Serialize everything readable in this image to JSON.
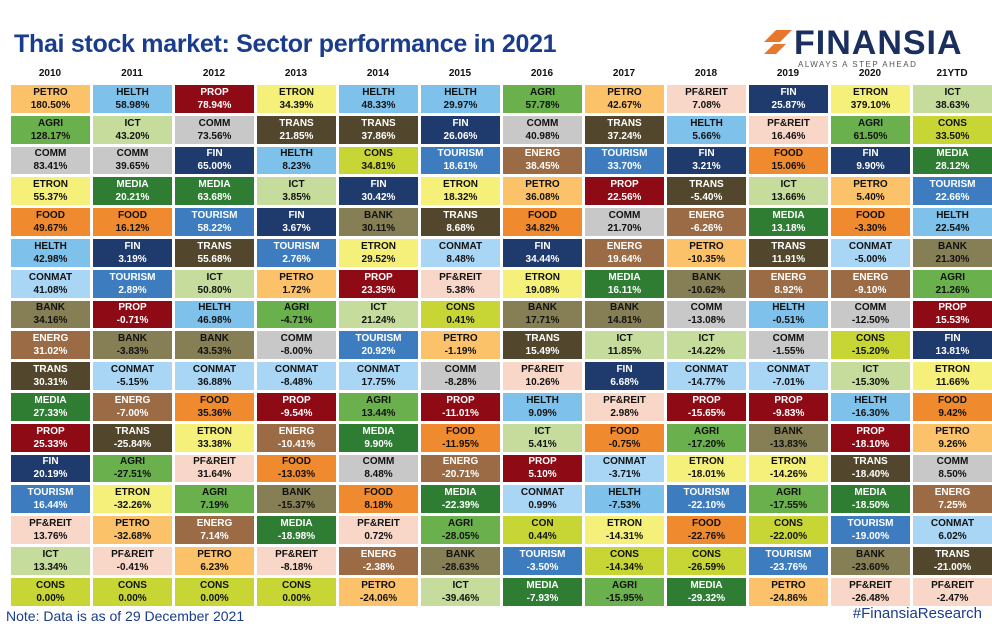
{
  "header": {
    "title": "Thai stock market: Sector performance in 2021",
    "brand_name": "FINANSIA",
    "brand_tagline": "ALWAYS A STEP AHEAD"
  },
  "footer": {
    "note": "Note: Data is as of 29 December 2021",
    "hashtag": "#FinansiaResearch"
  },
  "colors": {
    "brand_blue": "#1a3c8c",
    "brand_orange": "#e8772e",
    "sectors": {
      "PETRO": {
        "bg": "#fbc26a",
        "fg": "#111111"
      },
      "HELTH": {
        "bg": "#7ec2ec",
        "fg": "#111111"
      },
      "PROP": {
        "bg": "#8e0b16",
        "fg": "#ffffff"
      },
      "ETRON": {
        "bg": "#f4f07a",
        "fg": "#111111"
      },
      "AGRI": {
        "bg": "#6ab04c",
        "fg": "#111111"
      },
      "PF&REIT": {
        "bg": "#f8d7c8",
        "fg": "#111111"
      },
      "FIN": {
        "bg": "#1f3a6d",
        "fg": "#ffffff"
      },
      "ICT": {
        "bg": "#c5dc9c",
        "fg": "#111111"
      },
      "COMM": {
        "bg": "#c8c8c8",
        "fg": "#111111"
      },
      "TRANS": {
        "bg": "#52472c",
        "fg": "#ffffff"
      },
      "CONS": {
        "bg": "#c8d635",
        "fg": "#111111"
      },
      "ENERG": {
        "bg": "#9b6b45",
        "fg": "#ffffff"
      },
      "TOURISM": {
        "bg": "#3d7dbf",
        "fg": "#ffffff"
      },
      "FOOD": {
        "bg": "#ef8a2e",
        "fg": "#111111"
      },
      "MEDIA": {
        "bg": "#2e7d33",
        "fg": "#ffffff"
      },
      "BANK": {
        "bg": "#867f55",
        "fg": "#111111"
      },
      "CONMAT": {
        "bg": "#a9d6f5",
        "fg": "#111111"
      },
      "CON": {
        "bg": "#c8d635",
        "fg": "#111111"
      }
    }
  },
  "chart_data": {
    "type": "table",
    "title": "Thai stock market: Sector performance in 2021",
    "columns": [
      "2010",
      "2011",
      "2012",
      "2013",
      "2014",
      "2015",
      "2016",
      "2017",
      "2018",
      "2019",
      "2020",
      "21YTD"
    ],
    "rows": [
      [
        [
          "PETRO",
          "180.50%"
        ],
        [
          "HELTH",
          "58.98%"
        ],
        [
          "PROP",
          "78.94%"
        ],
        [
          "ETRON",
          "34.39%"
        ],
        [
          "HELTH",
          "48.33%"
        ],
        [
          "HELTH",
          "29.97%"
        ],
        [
          "AGRI",
          "57.78%"
        ],
        [
          "PETRO",
          "42.67%"
        ],
        [
          "PF&REIT",
          "7.08%"
        ],
        [
          "FIN",
          "25.87%"
        ],
        [
          "ETRON",
          "379.10%"
        ],
        [
          "ICT",
          "38.63%"
        ]
      ],
      [
        [
          "AGRI",
          "128.17%"
        ],
        [
          "ICT",
          "43.20%"
        ],
        [
          "COMM",
          "73.56%"
        ],
        [
          "TRANS",
          "21.85%"
        ],
        [
          "TRANS",
          "37.86%"
        ],
        [
          "FIN",
          "26.06%"
        ],
        [
          "COMM",
          "40.98%"
        ],
        [
          "TRANS",
          "37.24%"
        ],
        [
          "HELTH",
          "5.66%"
        ],
        [
          "PF&REIT",
          "16.46%"
        ],
        [
          "AGRI",
          "61.50%"
        ],
        [
          "CONS",
          "33.50%"
        ]
      ],
      [
        [
          "COMM",
          "83.41%"
        ],
        [
          "COMM",
          "39.65%"
        ],
        [
          "FIN",
          "65.00%"
        ],
        [
          "HELTH",
          "8.23%"
        ],
        [
          "CONS",
          "34.81%"
        ],
        [
          "TOURISM",
          "18.61%"
        ],
        [
          "ENERG",
          "38.45%"
        ],
        [
          "TOURISM",
          "33.70%"
        ],
        [
          "FIN",
          "3.21%"
        ],
        [
          "FOOD",
          "15.06%"
        ],
        [
          "FIN",
          "9.90%"
        ],
        [
          "MEDIA",
          "28.12%"
        ]
      ],
      [
        [
          "ETRON",
          "55.37%"
        ],
        [
          "MEDIA",
          "20.21%"
        ],
        [
          "MEDIA",
          "63.68%"
        ],
        [
          "ICT",
          "3.85%"
        ],
        [
          "FIN",
          "30.42%"
        ],
        [
          "ETRON",
          "18.32%"
        ],
        [
          "PETRO",
          "36.08%"
        ],
        [
          "PROP",
          "22.56%"
        ],
        [
          "TRANS",
          "-5.40%"
        ],
        [
          "ICT",
          "13.66%"
        ],
        [
          "PETRO",
          "5.40%"
        ],
        [
          "TOURISM",
          "22.66%"
        ]
      ],
      [
        [
          "FOOD",
          "49.67%"
        ],
        [
          "FOOD",
          "16.12%"
        ],
        [
          "TOURISM",
          "58.22%"
        ],
        [
          "FIN",
          "3.67%"
        ],
        [
          "BANK",
          "30.11%"
        ],
        [
          "TRANS",
          "8.68%"
        ],
        [
          "FOOD",
          "34.82%"
        ],
        [
          "COMM",
          "21.70%"
        ],
        [
          "ENERG",
          "-6.26%"
        ],
        [
          "MEDIA",
          "13.18%"
        ],
        [
          "FOOD",
          "-3.30%"
        ],
        [
          "HELTH",
          "22.54%"
        ]
      ],
      [
        [
          "HELTH",
          "42.98%"
        ],
        [
          "FIN",
          "3.19%"
        ],
        [
          "TRANS",
          "55.68%"
        ],
        [
          "TOURISM",
          "2.76%"
        ],
        [
          "ETRON",
          "29.52%"
        ],
        [
          "CONMAT",
          "8.48%"
        ],
        [
          "FIN",
          "34.44%"
        ],
        [
          "ENERG",
          "19.64%"
        ],
        [
          "PETRO",
          "-10.35%"
        ],
        [
          "TRANS",
          "11.91%"
        ],
        [
          "CONMAT",
          "-5.00%"
        ],
        [
          "BANK",
          "21.30%"
        ]
      ],
      [
        [
          "CONMAT",
          "41.08%"
        ],
        [
          "TOURISM",
          "2.89%"
        ],
        [
          "ICT",
          "50.80%"
        ],
        [
          "PETRO",
          "1.72%"
        ],
        [
          "PROP",
          "23.35%"
        ],
        [
          "PF&REIT",
          "5.38%"
        ],
        [
          "ETRON",
          "19.08%"
        ],
        [
          "MEDIA",
          "16.11%"
        ],
        [
          "BANK",
          "-10.62%"
        ],
        [
          "ENERG",
          "8.92%"
        ],
        [
          "ENERG",
          "-9.10%"
        ],
        [
          "AGRI",
          "21.26%"
        ]
      ],
      [
        [
          "BANK",
          "34.16%"
        ],
        [
          "PROP",
          "-0.71%"
        ],
        [
          "HELTH",
          "46.98%"
        ],
        [
          "AGRI",
          "-4.71%"
        ],
        [
          "ICT",
          "21.24%"
        ],
        [
          "CONS",
          "0.41%"
        ],
        [
          "BANK",
          "17.71%"
        ],
        [
          "BANK",
          "14.81%"
        ],
        [
          "COMM",
          "-13.08%"
        ],
        [
          "HELTH",
          "-0.51%"
        ],
        [
          "COMM",
          "-12.50%"
        ],
        [
          "PROP",
          "15.53%"
        ]
      ],
      [
        [
          "ENERG",
          "31.02%"
        ],
        [
          "BANK",
          "-3.83%"
        ],
        [
          "BANK",
          "43.53%"
        ],
        [
          "COMM",
          "-8.00%"
        ],
        [
          "TOURISM",
          "20.92%"
        ],
        [
          "PETRO",
          "-1.19%"
        ],
        [
          "TRANS",
          "15.49%"
        ],
        [
          "ICT",
          "11.85%"
        ],
        [
          "ICT",
          "-14.22%"
        ],
        [
          "COMM",
          "-1.55%"
        ],
        [
          "CONS",
          "-15.20%"
        ],
        [
          "FIN",
          "13.81%"
        ]
      ],
      [
        [
          "TRANS",
          "30.31%"
        ],
        [
          "CONMAT",
          "-5.15%"
        ],
        [
          "CONMAT",
          "36.88%"
        ],
        [
          "CONMAT",
          "-8.48%"
        ],
        [
          "CONMAT",
          "17.75%"
        ],
        [
          "COMM",
          "-8.28%"
        ],
        [
          "PF&REIT",
          "10.26%"
        ],
        [
          "FIN",
          "6.68%"
        ],
        [
          "CONMAT",
          "-14.77%"
        ],
        [
          "CONMAT",
          "-7.01%"
        ],
        [
          "ICT",
          "-15.30%"
        ],
        [
          "ETRON",
          "11.66%"
        ]
      ],
      [
        [
          "MEDIA",
          "27.33%"
        ],
        [
          "ENERG",
          "-7.00%"
        ],
        [
          "FOOD",
          "35.36%"
        ],
        [
          "PROP",
          "-9.54%"
        ],
        [
          "AGRI",
          "13.44%"
        ],
        [
          "PROP",
          "-11.01%"
        ],
        [
          "HELTH",
          "9.09%"
        ],
        [
          "PF&REIT",
          "2.98%"
        ],
        [
          "PROP",
          "-15.65%"
        ],
        [
          "PROP",
          "-9.83%"
        ],
        [
          "HELTH",
          "-16.30%"
        ],
        [
          "FOOD",
          "9.42%"
        ]
      ],
      [
        [
          "PROP",
          "25.33%"
        ],
        [
          "TRANS",
          "-25.84%"
        ],
        [
          "ETRON",
          "33.38%"
        ],
        [
          "ENERG",
          "-10.41%"
        ],
        [
          "MEDIA",
          "9.90%"
        ],
        [
          "FOOD",
          "-11.95%"
        ],
        [
          "ICT",
          "5.41%"
        ],
        [
          "FOOD",
          "-0.75%"
        ],
        [
          "AGRI",
          "-17.20%"
        ],
        [
          "BANK",
          "-13.83%"
        ],
        [
          "PROP",
          "-18.10%"
        ],
        [
          "PETRO",
          "9.26%"
        ]
      ],
      [
        [
          "FIN",
          "20.19%"
        ],
        [
          "AGRI",
          "-27.51%"
        ],
        [
          "PF&REIT",
          "31.64%"
        ],
        [
          "FOOD",
          "-13.03%"
        ],
        [
          "COMM",
          "8.48%"
        ],
        [
          "ENERG",
          "-20.71%"
        ],
        [
          "PROP",
          "5.10%"
        ],
        [
          "CONMAT",
          "-3.71%"
        ],
        [
          "ETRON",
          "-18.01%"
        ],
        [
          "ETRON",
          "-14.26%"
        ],
        [
          "TRANS",
          "-18.40%"
        ],
        [
          "COMM",
          "8.50%"
        ]
      ],
      [
        [
          "TOURISM",
          "16.44%"
        ],
        [
          "ETRON",
          "-32.26%"
        ],
        [
          "AGRI",
          "7.19%"
        ],
        [
          "BANK",
          "-15.37%"
        ],
        [
          "FOOD",
          "8.18%"
        ],
        [
          "MEDIA",
          "-22.39%"
        ],
        [
          "CONMAT",
          "0.99%"
        ],
        [
          "HELTH",
          "-7.53%"
        ],
        [
          "TOURISM",
          "-22.10%"
        ],
        [
          "AGRI",
          "-17.55%"
        ],
        [
          "MEDIA",
          "-18.50%"
        ],
        [
          "ENERG",
          "7.25%"
        ]
      ],
      [
        [
          "PF&REIT",
          "13.76%"
        ],
        [
          "PETRO",
          "-32.68%"
        ],
        [
          "ENERG",
          "7.14%"
        ],
        [
          "MEDIA",
          "-18.98%"
        ],
        [
          "PF&REIT",
          "0.72%"
        ],
        [
          "AGRI",
          "-28.05%"
        ],
        [
          "CON",
          "0.44%"
        ],
        [
          "ETRON",
          "-14.31%"
        ],
        [
          "FOOD",
          "-22.76%"
        ],
        [
          "CONS",
          "-22.00%"
        ],
        [
          "TOURISM",
          "-19.00%"
        ],
        [
          "CONMAT",
          "6.02%"
        ]
      ],
      [
        [
          "ICT",
          "13.34%"
        ],
        [
          "PF&REIT",
          "-0.41%"
        ],
        [
          "PETRO",
          "6.23%"
        ],
        [
          "PF&REIT",
          "-8.18%"
        ],
        [
          "ENERG",
          "-2.38%"
        ],
        [
          "BANK",
          "-28.63%"
        ],
        [
          "TOURISM",
          "-3.50%"
        ],
        [
          "CONS",
          "-14.34%"
        ],
        [
          "CONS",
          "-26.59%"
        ],
        [
          "TOURISM",
          "-23.76%"
        ],
        [
          "BANK",
          "-23.60%"
        ],
        [
          "TRANS",
          "-21.00%"
        ]
      ],
      [
        [
          "CONS",
          "0.00%"
        ],
        [
          "CONS",
          "0.00%"
        ],
        [
          "CONS",
          "0.00%"
        ],
        [
          "CONS",
          "0.00%"
        ],
        [
          "PETRO",
          "-24.06%"
        ],
        [
          "ICT",
          "-39.46%"
        ],
        [
          "MEDIA",
          "-7.93%"
        ],
        [
          "AGRI",
          "-15.95%"
        ],
        [
          "MEDIA",
          "-29.32%"
        ],
        [
          "PETRO",
          "-24.86%"
        ],
        [
          "PF&REIT",
          "-26.48%"
        ],
        [
          "PF&REIT",
          "-2.47%"
        ]
      ]
    ]
  }
}
